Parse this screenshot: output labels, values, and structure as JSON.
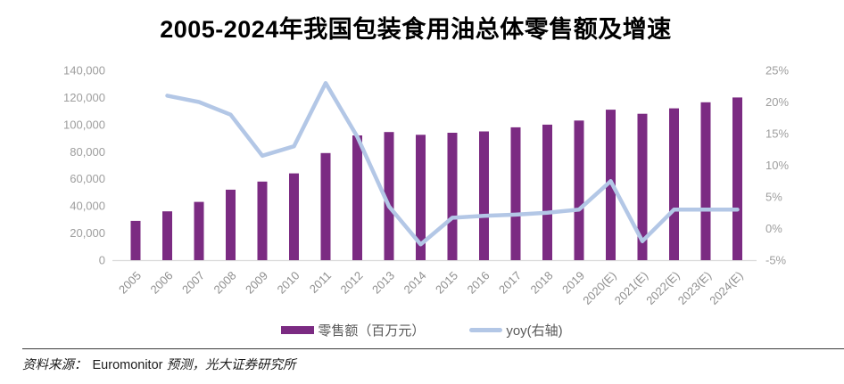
{
  "chart_data": {
    "type": "bar+line",
    "title": "2005-2024年我国包装食用油总体零售额及增速",
    "categories": [
      "2005",
      "2006",
      "2007",
      "2008",
      "2009",
      "2010",
      "2011",
      "2012",
      "2013",
      "2014",
      "2015",
      "2016",
      "2017",
      "2018",
      "2019",
      "2020(E)",
      "2021(E)",
      "2022(E)",
      "2023(E)",
      "2024(E)"
    ],
    "series": [
      {
        "name": "零售额（百万元）",
        "type": "bar",
        "axis": "left",
        "color": "#7B2B82",
        "values": [
          29000,
          36000,
          43000,
          52000,
          58000,
          64000,
          79000,
          92000,
          94500,
          92500,
          94000,
          95000,
          98000,
          100000,
          103000,
          111000,
          108000,
          112000,
          116500,
          120000
        ]
      },
      {
        "name": "yoy(右轴)",
        "type": "line",
        "axis": "right",
        "color": "#B3C7E6",
        "values": [
          null,
          21,
          20,
          18,
          11.5,
          13,
          23,
          14.5,
          3.5,
          -2.5,
          1.7,
          2,
          2.2,
          2.5,
          3,
          7.5,
          -2,
          3,
          3,
          3
        ]
      }
    ],
    "left_axis": {
      "min": 0,
      "max": 140000,
      "step": 20000,
      "tick_labels": [
        "0",
        "20,000",
        "40,000",
        "60,000",
        "80,000",
        "100,000",
        "120,000",
        "140,000"
      ]
    },
    "right_axis": {
      "min": -5,
      "max": 25,
      "step": 5,
      "tick_labels": [
        "-5%",
        "0%",
        "5%",
        "10%",
        "15%",
        "20%",
        "25%"
      ]
    },
    "grid": false,
    "legend_position": "bottom"
  },
  "legend": {
    "items": [
      {
        "label": "零售额（百万元）",
        "color": "#7B2B82",
        "shape": "bar"
      },
      {
        "label": "yoy(右轴)",
        "color": "#B3C7E6",
        "shape": "line"
      }
    ]
  },
  "footer": {
    "prefix": "资料来源：",
    "source": "Euromonitor",
    "suffix": "预测，光大证券研究所"
  }
}
